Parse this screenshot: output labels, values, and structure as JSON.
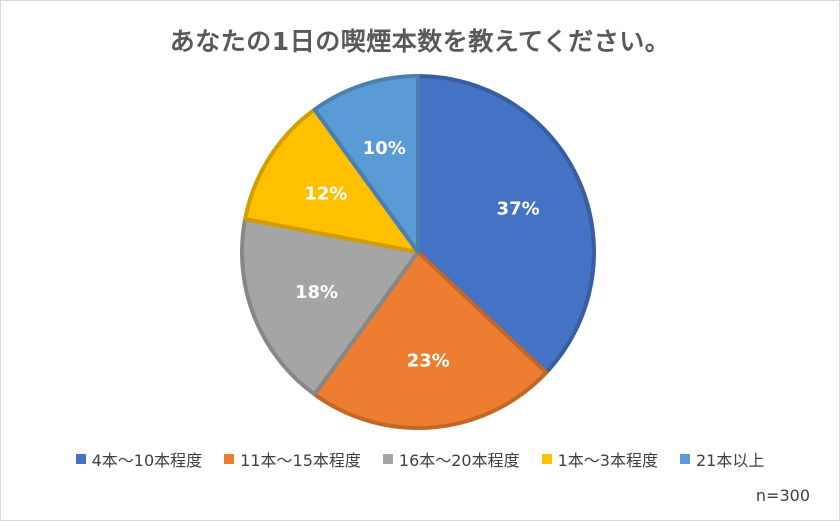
{
  "chart_data": {
    "type": "pie",
    "title": "あなたの1日の喫煙本数を教えてください。",
    "categories": [
      "4本～10本程度",
      "11本～15本程度",
      "16本～20本程度",
      "1本～3本程度",
      "21本以上"
    ],
    "values": [
      37,
      23,
      18,
      12,
      10
    ],
    "labels": [
      "37%",
      "23%",
      "18%",
      "12%",
      "10%"
    ],
    "colors": [
      "#4472c4",
      "#ed7d31",
      "#a5a5a5",
      "#ffc000",
      "#5b9bd5"
    ],
    "legend_position": "bottom",
    "note": "n=300"
  }
}
